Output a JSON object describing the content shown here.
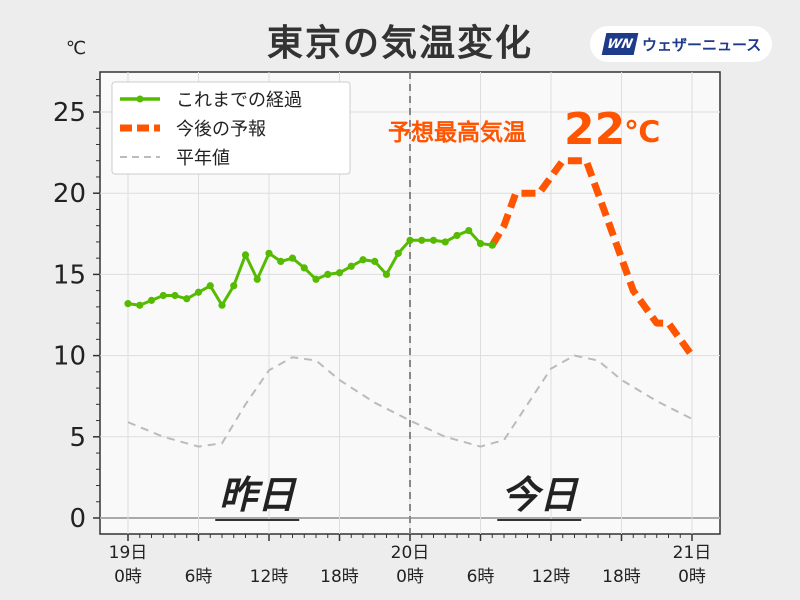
{
  "header": {
    "title": "東京の気温変化",
    "logo_mark": "WN",
    "logo_text": "ウェザーニュース",
    "unit": "℃"
  },
  "colors": {
    "observed": "#55bb00",
    "forecast": "#ff5500",
    "normal": "#bbbbbb"
  },
  "chart_data": {
    "type": "line",
    "title": "東京の気温変化",
    "ylabel": "℃",
    "ylim": [
      0,
      27
    ],
    "y_ticks": [
      0,
      5,
      10,
      15,
      20,
      25
    ],
    "xlim": [
      0,
      48
    ],
    "x_ticks": [
      {
        "x": 0,
        "day": "19日",
        "time": "0時"
      },
      {
        "x": 6,
        "day": "",
        "time": "6時"
      },
      {
        "x": 12,
        "day": "",
        "time": "12時"
      },
      {
        "x": 18,
        "day": "",
        "time": "18時"
      },
      {
        "x": 24,
        "day": "20日",
        "time": "0時"
      },
      {
        "x": 30,
        "day": "",
        "time": "6時"
      },
      {
        "x": 36,
        "day": "",
        "time": "12時"
      },
      {
        "x": 42,
        "day": "",
        "time": "18時"
      },
      {
        "x": 48,
        "day": "21日",
        "time": "0時"
      }
    ],
    "day_labels": [
      {
        "x": 11,
        "text": "昨日"
      },
      {
        "x": 35,
        "text": "今日"
      }
    ],
    "divider_x": 24,
    "legend": {
      "placement": "top-left"
    },
    "series": [
      {
        "name": "これまでの経過",
        "style": "observed",
        "x": [
          0,
          1,
          2,
          3,
          4,
          5,
          6,
          7,
          8,
          9,
          10,
          11,
          12,
          13,
          14,
          15,
          16,
          17,
          18,
          19,
          20,
          21,
          22,
          23,
          24,
          25,
          26,
          27,
          28,
          29,
          30,
          31
        ],
        "y": [
          13.2,
          13.1,
          13.4,
          13.7,
          13.7,
          13.5,
          13.9,
          14.3,
          13.1,
          14.3,
          16.2,
          14.7,
          16.3,
          15.8,
          16.0,
          15.4,
          14.7,
          15.0,
          15.1,
          15.5,
          15.9,
          15.8,
          15.0,
          16.3,
          17.1,
          17.1,
          17.1,
          17.0,
          17.4,
          17.7,
          16.9,
          16.8
        ]
      },
      {
        "name": "今後の予報",
        "style": "forecast",
        "x": [
          31,
          32,
          33,
          34,
          35,
          36,
          37,
          38,
          39,
          40,
          41,
          42,
          43,
          44,
          45,
          46,
          47,
          48
        ],
        "y": [
          16.8,
          18.0,
          20.0,
          20.0,
          20.0,
          21.0,
          22.0,
          22.0,
          22.0,
          20.0,
          18.0,
          16.0,
          14.0,
          13.0,
          12.0,
          12.0,
          11.0,
          10.0
        ]
      },
      {
        "name": "平年値",
        "style": "normal",
        "x": [
          0,
          3,
          6,
          8,
          10,
          12,
          14,
          16,
          18,
          21,
          24,
          27,
          30,
          32,
          34,
          36,
          38,
          40,
          42,
          45,
          48
        ],
        "y": [
          5.9,
          5.0,
          4.4,
          4.6,
          7.0,
          9.1,
          9.9,
          9.7,
          8.5,
          7.1,
          6.0,
          5.0,
          4.4,
          4.8,
          7.0,
          9.2,
          10.0,
          9.7,
          8.5,
          7.2,
          6.1
        ]
      }
    ],
    "annotation": {
      "label": "予想最高気温",
      "value": "22",
      "unit": "℃"
    }
  }
}
